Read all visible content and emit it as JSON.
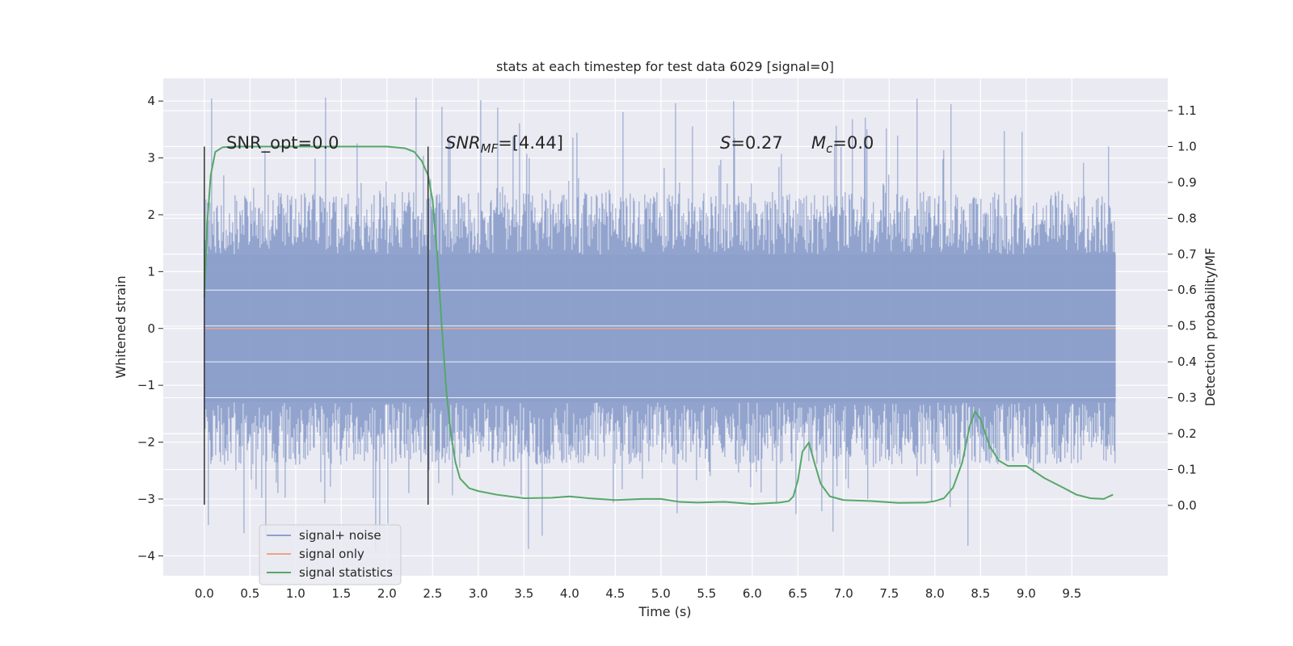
{
  "chart_data": {
    "type": "line",
    "title": "stats at each timestep for test data 6029 [signal=0]",
    "xlabel": "Time (s)",
    "ylabel_left": "Whitened strain",
    "ylabel_right": "Detection probability/MF",
    "xlim": [
      -0.45,
      10.55
    ],
    "ylim_left": [
      -4.35,
      4.4
    ],
    "ylim_right": [
      -0.196,
      1.19
    ],
    "x_ticks": [
      "0.0",
      "0.5",
      "1.0",
      "1.5",
      "2.0",
      "2.5",
      "3.0",
      "3.5",
      "4.0",
      "4.5",
      "5.0",
      "5.5",
      "6.0",
      "6.5",
      "7.0",
      "7.5",
      "8.0",
      "8.5",
      "9.0",
      "9.5"
    ],
    "y_ticks_left": [
      "−4",
      "−3",
      "−2",
      "−1",
      "0",
      "1",
      "2",
      "3",
      "4"
    ],
    "y_ticks_right": [
      "0.0",
      "0.1",
      "0.2",
      "0.3",
      "0.4",
      "0.5",
      "0.6",
      "0.7",
      "0.8",
      "0.9",
      "1.0",
      "1.1"
    ],
    "grid": true,
    "legend_position": "lower-left",
    "annotations": {
      "snr_opt": "SNR_opt=0.0",
      "snr_mf_main": "SNR",
      "snr_mf_sub": "MF",
      "snr_mf_value": "=[4.44]",
      "s_main": "S",
      "s_value": "=0.27",
      "mc_main": "M",
      "mc_sub": "c",
      "mc_value": "=0.0"
    },
    "vertical_markers": [
      {
        "x": 0.0,
        "y_range": [
          -3.1,
          3.2
        ]
      },
      {
        "x": 2.45,
        "y_range": [
          -3.1,
          3.2
        ]
      }
    ],
    "series": [
      {
        "name": "signal+ noise",
        "axis": "left",
        "color": "#8da0cb",
        "x_range": [
          0.0,
          9.98
        ],
        "noise_envelope_typical": 1.3,
        "noise_extremes": [
          -4.0,
          4.07
        ]
      },
      {
        "name": "signal only",
        "axis": "left",
        "color": "#e8a689",
        "x": [
          0.0,
          9.98
        ],
        "y": [
          0.0,
          0.0
        ]
      },
      {
        "name": "signal statistics",
        "axis": "right",
        "color": "#55a868",
        "x": [
          0.0,
          0.03,
          0.07,
          0.12,
          0.2,
          0.35,
          0.6,
          1.0,
          1.5,
          2.0,
          2.2,
          2.3,
          2.38,
          2.45,
          2.5,
          2.55,
          2.6,
          2.65,
          2.7,
          2.75,
          2.8,
          2.9,
          3.0,
          3.2,
          3.5,
          3.8,
          4.0,
          4.2,
          4.5,
          4.8,
          5.0,
          5.2,
          5.4,
          5.7,
          6.0,
          6.3,
          6.4,
          6.45,
          6.5,
          6.55,
          6.62,
          6.68,
          6.75,
          6.85,
          7.0,
          7.3,
          7.6,
          7.9,
          8.0,
          8.1,
          8.2,
          8.3,
          8.38,
          8.44,
          8.5,
          8.6,
          8.7,
          8.8,
          9.0,
          9.2,
          9.4,
          9.55,
          9.7,
          9.85,
          9.95
        ],
        "y": [
          0.58,
          0.78,
          0.92,
          0.985,
          0.998,
          1.0,
          1.0,
          1.0,
          1.0,
          1.0,
          0.995,
          0.985,
          0.96,
          0.92,
          0.85,
          0.7,
          0.5,
          0.32,
          0.2,
          0.12,
          0.075,
          0.048,
          0.04,
          0.03,
          0.02,
          0.021,
          0.025,
          0.02,
          0.015,
          0.018,
          0.018,
          0.01,
          0.008,
          0.01,
          0.004,
          0.008,
          0.012,
          0.025,
          0.07,
          0.15,
          0.175,
          0.12,
          0.06,
          0.025,
          0.015,
          0.012,
          0.007,
          0.008,
          0.012,
          0.02,
          0.05,
          0.12,
          0.22,
          0.262,
          0.24,
          0.165,
          0.125,
          0.11,
          0.11,
          0.076,
          0.05,
          0.03,
          0.02,
          0.018,
          0.03
        ]
      }
    ]
  }
}
